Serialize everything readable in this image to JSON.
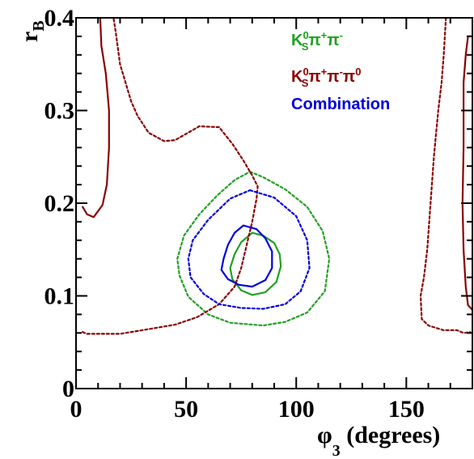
{
  "chart_data": {
    "type": "line",
    "xlabel": {
      "main": "φ",
      "subscript": "3",
      "suffix": " (degrees)"
    },
    "ylabel": {
      "main": "r",
      "subscript": "B"
    },
    "xlim": [
      0,
      180
    ],
    "ylim": [
      0,
      0.4
    ],
    "xticks": [
      0,
      50,
      100,
      150
    ],
    "xtick_labels": [
      "0",
      "50",
      "100",
      "150"
    ],
    "yticks": [
      0,
      0.1,
      0.2,
      0.3,
      0.4
    ],
    "ytick_labels": [
      "0",
      "0.1",
      "0.2",
      "0.3",
      "0.4"
    ],
    "legend": {
      "placement": "top-right",
      "entries": [
        {
          "text": "Kₛ⁰π⁺π⁻",
          "color": "#22a022"
        },
        {
          "text": "Kₛ⁰π⁺π⁻π⁰",
          "color": "#8b0000"
        },
        {
          "text": "Combination",
          "color": "#0000dd"
        }
      ]
    },
    "series": [
      {
        "color": "#22a022",
        "style": "solid",
        "points": [
          [
            80,
            0.168
          ],
          [
            85,
            0.165
          ],
          [
            90,
            0.157
          ],
          [
            92.5,
            0.145
          ],
          [
            93,
            0.132
          ],
          [
            91,
            0.115
          ],
          [
            86,
            0.104
          ],
          [
            80,
            0.101
          ],
          [
            75,
            0.106
          ],
          [
            71,
            0.118
          ],
          [
            70,
            0.13
          ],
          [
            72,
            0.145
          ],
          [
            75,
            0.158
          ],
          [
            80,
            0.168
          ]
        ]
      },
      {
        "color": "#22a022",
        "style": "dotted",
        "points": [
          [
            79,
            0.234
          ],
          [
            85,
            0.228
          ],
          [
            95,
            0.215
          ],
          [
            105,
            0.196
          ],
          [
            112,
            0.17
          ],
          [
            115,
            0.14
          ],
          [
            113,
            0.105
          ],
          [
            105,
            0.082
          ],
          [
            95,
            0.072
          ],
          [
            85,
            0.068
          ],
          [
            70,
            0.071
          ],
          [
            60,
            0.08
          ],
          [
            51,
            0.099
          ],
          [
            47,
            0.122
          ],
          [
            46,
            0.14
          ],
          [
            49,
            0.165
          ],
          [
            56,
            0.188
          ],
          [
            64,
            0.208
          ],
          [
            72,
            0.225
          ],
          [
            79,
            0.234
          ]
        ]
      },
      {
        "color": "#8b0000",
        "style": "solid",
        "points": [
          [
            11,
            0.4
          ],
          [
            11.5,
            0.37
          ],
          [
            13.5,
            0.34
          ],
          [
            15,
            0.3
          ],
          [
            15,
            0.26
          ],
          [
            14,
            0.22
          ],
          [
            12,
            0.198
          ],
          [
            8,
            0.185
          ],
          [
            5,
            0.188
          ],
          [
            3,
            0.196
          ]
        ]
      },
      {
        "color": "#8b0000",
        "style": "solid",
        "points": [
          [
            180,
            0.38
          ],
          [
            178,
            0.38
          ],
          [
            177,
            0.36
          ],
          [
            176,
            0.33
          ],
          [
            176,
            0.26
          ],
          [
            175.5,
            0.2
          ],
          [
            176,
            0.15
          ],
          [
            177,
            0.11
          ],
          [
            178,
            0.09
          ],
          [
            180,
            0.085
          ]
        ]
      },
      {
        "color": "#8b0000",
        "style": "dotted",
        "points": [
          [
            3,
            0.061
          ],
          [
            5,
            0.059
          ],
          [
            20,
            0.059
          ],
          [
            30,
            0.063
          ],
          [
            45,
            0.069
          ],
          [
            55,
            0.077
          ],
          [
            65,
            0.091
          ],
          [
            72,
            0.11
          ],
          [
            75,
            0.13
          ],
          [
            77,
            0.15
          ],
          [
            80,
            0.18
          ],
          [
            82,
            0.205
          ],
          [
            82.5,
            0.218
          ],
          [
            80,
            0.23
          ],
          [
            76,
            0.246
          ],
          [
            71,
            0.264
          ],
          [
            65,
            0.282
          ],
          [
            56,
            0.283
          ],
          [
            45,
            0.268
          ],
          [
            40,
            0.267
          ],
          [
            33,
            0.276
          ],
          [
            28,
            0.294
          ],
          [
            25,
            0.31
          ],
          [
            20,
            0.35
          ],
          [
            18,
            0.385
          ],
          [
            17,
            0.4
          ]
        ]
      },
      {
        "color": "#8b0000",
        "style": "dotted",
        "points": [
          [
            168,
            0.4
          ],
          [
            167,
            0.36
          ],
          [
            166,
            0.33
          ],
          [
            164.5,
            0.3
          ],
          [
            162.5,
            0.25
          ],
          [
            161,
            0.2
          ],
          [
            159.5,
            0.15
          ],
          [
            158,
            0.12
          ],
          [
            156.5,
            0.1
          ],
          [
            157,
            0.075
          ],
          [
            160,
            0.068
          ],
          [
            167,
            0.063
          ],
          [
            173,
            0.063
          ],
          [
            176,
            0.06
          ],
          [
            179,
            0.061
          ]
        ]
      },
      {
        "color": "#0000dd",
        "style": "solid",
        "points": [
          [
            76,
            0.176
          ],
          [
            82,
            0.172
          ],
          [
            86,
            0.162
          ],
          [
            89,
            0.148
          ],
          [
            89,
            0.13
          ],
          [
            86,
            0.117
          ],
          [
            80,
            0.11
          ],
          [
            74,
            0.112
          ],
          [
            69,
            0.118
          ],
          [
            66,
            0.128
          ],
          [
            67,
            0.14
          ],
          [
            69,
            0.155
          ],
          [
            72,
            0.168
          ],
          [
            76,
            0.176
          ]
        ]
      },
      {
        "color": "#0000dd",
        "style": "dotted",
        "points": [
          [
            79,
            0.214
          ],
          [
            90,
            0.206
          ],
          [
            100,
            0.186
          ],
          [
            105,
            0.16
          ],
          [
            106,
            0.13
          ],
          [
            102,
            0.105
          ],
          [
            95,
            0.091
          ],
          [
            85,
            0.086
          ],
          [
            75,
            0.087
          ],
          [
            65,
            0.091
          ],
          [
            58,
            0.102
          ],
          [
            52,
            0.12
          ],
          [
            51,
            0.14
          ],
          [
            53,
            0.16
          ],
          [
            60,
            0.182
          ],
          [
            70,
            0.205
          ],
          [
            79,
            0.214
          ]
        ]
      }
    ]
  }
}
